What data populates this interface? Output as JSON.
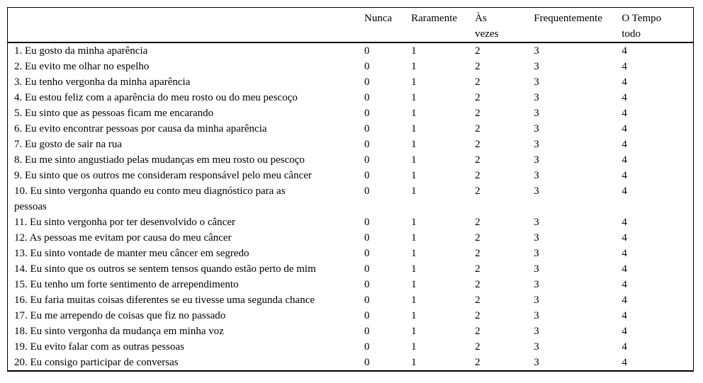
{
  "table": {
    "header": {
      "question_column": "",
      "columns": [
        "Nunca",
        "Raramente",
        "Às\nvezes",
        "Frequentemente",
        "O Tempo\ntodo"
      ]
    },
    "scale_values": [
      "0",
      "1",
      "2",
      "3",
      "4"
    ],
    "rows": [
      {
        "label": "1. Eu gosto da minha aparência",
        "values": [
          "0",
          "1",
          "2",
          "3",
          "4"
        ]
      },
      {
        "label": "2. Eu evito me olhar no espelho",
        "values": [
          "0",
          "1",
          "2",
          "3",
          "4"
        ]
      },
      {
        "label": "3. Eu tenho vergonha da minha aparência",
        "values": [
          "0",
          "1",
          "2",
          "3",
          "4"
        ]
      },
      {
        "label": "4. Eu estou feliz com a aparência do meu rosto ou do meu pescoço",
        "values": [
          "0",
          "1",
          "2",
          "3",
          "4"
        ]
      },
      {
        "label": "5. Eu sinto que as pessoas ficam me encarando",
        "values": [
          "0",
          "1",
          "2",
          "3",
          "4"
        ]
      },
      {
        "label": "6. Eu evito encontrar pessoas por causa da minha aparência",
        "values": [
          "0",
          "1",
          "2",
          "3",
          "4"
        ]
      },
      {
        "label": "7. Eu gosto de sair na rua",
        "values": [
          "0",
          "1",
          "2",
          "3",
          "4"
        ]
      },
      {
        "label": "8. Eu me sinto angustiado pelas mudanças em meu rosto ou pescoço",
        "values": [
          "0",
          "1",
          "2",
          "3",
          "4"
        ]
      },
      {
        "label": "9. Eu sinto que os outros me consideram responsável pelo meu câncer",
        "values": [
          "0",
          "1",
          "2",
          "3",
          "4"
        ]
      },
      {
        "label": "10. Eu sinto vergonha quando eu conto meu diagnóstico para as\npessoas",
        "values": [
          "0",
          "1",
          "2",
          "3",
          "4"
        ]
      },
      {
        "label": "11. Eu sinto vergonha por ter desenvolvido o câncer",
        "values": [
          "0",
          "1",
          "2",
          "3",
          "4"
        ]
      },
      {
        "label": "12. As pessoas me evitam por causa do meu câncer",
        "values": [
          "0",
          "1",
          "2",
          "3",
          "4"
        ]
      },
      {
        "label": "13. Eu sinto vontade de manter meu câncer em segredo",
        "values": [
          "0",
          "1",
          "2",
          "3",
          "4"
        ]
      },
      {
        "label": "14. Eu sinto que os outros se sentem tensos quando estão perto de mim",
        "values": [
          "0",
          "1",
          "2",
          "3",
          "4"
        ]
      },
      {
        "label": "15. Eu tenho um forte sentimento de arrependimento",
        "values": [
          "0",
          "1",
          "2",
          "3",
          "4"
        ]
      },
      {
        "label": "16. Eu faria muitas coisas diferentes se eu tivesse uma segunda chance",
        "values": [
          "0",
          "1",
          "2",
          "3",
          "4"
        ]
      },
      {
        "label": "17. Eu me arrependo de coisas que fiz no passado",
        "values": [
          "0",
          "1",
          "2",
          "3",
          "4"
        ]
      },
      {
        "label": "18. Eu sinto vergonha da mudança em minha voz",
        "values": [
          "0",
          "1",
          "2",
          "3",
          "4"
        ]
      },
      {
        "label": "19. Eu evito falar com as outras pessoas",
        "values": [
          "0",
          "1",
          "2",
          "3",
          "4"
        ]
      },
      {
        "label": "20. Eu consigo participar de conversas",
        "values": [
          "0",
          "1",
          "2",
          "3",
          "4"
        ]
      }
    ]
  }
}
